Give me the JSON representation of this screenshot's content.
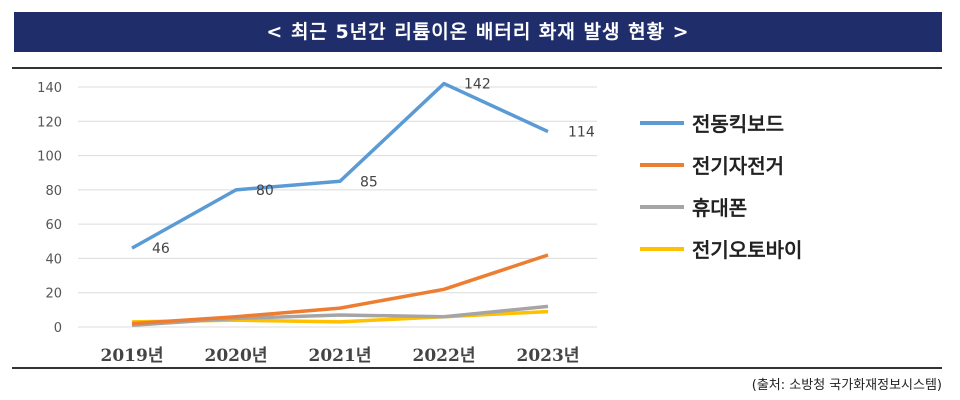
{
  "title": "< 최근 5년간 리튬이온 배터리 화재 발생 현황 >",
  "source": "(출처: 소방청 국가화재정보시스템)",
  "chart_data": {
    "type": "line",
    "title": "< 최근 5년간 리튬이온 배터리 화재 발생 현황 >",
    "categories": [
      "2019년",
      "2020년",
      "2021년",
      "2022년",
      "2023년"
    ],
    "ylim": [
      0,
      140
    ],
    "yticks": [
      0,
      20,
      40,
      60,
      80,
      100,
      120,
      140
    ],
    "grid": true,
    "legend": "right",
    "series": [
      {
        "name": "전동킥보드",
        "color": "#5b9bd5",
        "values": [
          46,
          80,
          85,
          142,
          114
        ],
        "labels": true
      },
      {
        "name": "전기자전거",
        "color": "#ed7d31",
        "values": [
          2,
          6,
          11,
          22,
          42
        ]
      },
      {
        "name": "휴대폰",
        "color": "#a5a5a5",
        "values": [
          1,
          5,
          7,
          6,
          12
        ]
      },
      {
        "name": "전기오토바이",
        "color": "#ffc000",
        "values": [
          3,
          4,
          3,
          6,
          9
        ]
      }
    ]
  }
}
